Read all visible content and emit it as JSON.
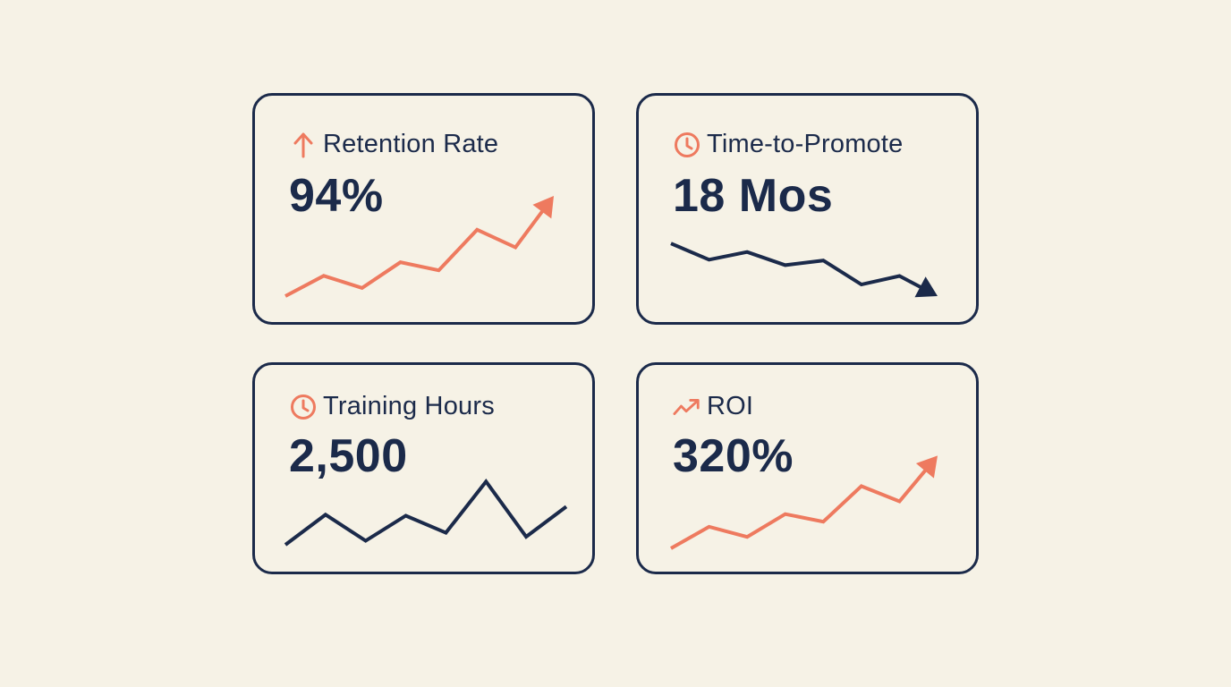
{
  "colors": {
    "background": "#f6f2e6",
    "navy": "#1b2a4a",
    "coral": "#ee7a5f"
  },
  "cards": [
    {
      "label": "Retention Rate",
      "value": "94%",
      "icon": "arrow-up-icon",
      "icon_color": "#ee7a5f",
      "line_color": "#ee7a5f",
      "arrow": true
    },
    {
      "label": "Time-to-Promote",
      "value": "18 Mos",
      "icon": "clock-icon",
      "icon_color": "#ee7a5f",
      "line_color": "#1b2a4a",
      "arrow": true
    },
    {
      "label": "Training Hours",
      "value": "2,500",
      "icon": "clock-icon",
      "icon_color": "#ee7a5f",
      "line_color": "#1b2a4a",
      "arrow": false
    },
    {
      "label": "ROI",
      "value": "320%",
      "icon": "trending-up-icon",
      "icon_color": "#ee7a5f",
      "line_color": "#ee7a5f",
      "arrow": true
    }
  ],
  "chart_data": [
    {
      "type": "line",
      "title": "Retention Rate",
      "series": [
        {
          "values": [
            1.0,
            2.5,
            1.6,
            3.5,
            2.9,
            5.9,
            4.6,
            8.4
          ]
        }
      ]
    },
    {
      "type": "line",
      "title": "Time-to-Promote",
      "series": [
        {
          "values": [
            7.8,
            5.7,
            6.7,
            5.0,
            5.6,
            2.5,
            3.6,
            1.0
          ]
        }
      ]
    },
    {
      "type": "line",
      "title": "Training Hours",
      "series": [
        {
          "values": [
            1.0,
            4.0,
            1.4,
            3.9,
            2.2,
            7.3,
            1.8,
            4.8
          ]
        }
      ]
    },
    {
      "type": "line",
      "title": "ROI",
      "series": [
        {
          "values": [
            1.0,
            2.7,
            1.9,
            3.7,
            3.1,
            5.9,
            4.7,
            8.3
          ]
        }
      ]
    }
  ]
}
